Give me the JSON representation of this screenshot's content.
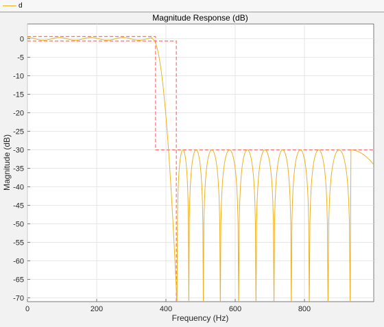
{
  "legend": {
    "label": "d",
    "color": "#edb120"
  },
  "chart_data": {
    "type": "line",
    "title": "Magnitude Response (dB)",
    "xlabel": "Frequency (Hz)",
    "ylabel": "Magnitude (dB)",
    "xlim": [
      0,
      1000
    ],
    "ylim": [
      -71,
      4
    ],
    "xticks": [
      0,
      200,
      400,
      600,
      800
    ],
    "yticks": [
      0,
      -5,
      -10,
      -15,
      -20,
      -25,
      -30,
      -35,
      -40,
      -45,
      -50,
      -55,
      -60,
      -65,
      -70
    ],
    "grid": true,
    "legend_position": "top",
    "series": [
      {
        "name": "d",
        "color": "#edb120",
        "passband_ripple_db": 0.5,
        "passband_edge_hz": 370,
        "stopband_edge_hz": 430,
        "stopband_level_db": -30,
        "stopband_nulls_hz": [
          432,
          466,
          508,
          557,
          610,
          660,
          712,
          762,
          814,
          868,
          932
        ]
      }
    ],
    "constraints": {
      "color": "#ff6b6b",
      "style": "dashed",
      "passband": {
        "x": [
          0,
          370
        ],
        "upper_db": 0.6,
        "lower_db": -0.6
      },
      "transition_edge_hz": 430,
      "stopband": {
        "x": [
          370,
          1000
        ],
        "upper_db": -30
      }
    }
  }
}
